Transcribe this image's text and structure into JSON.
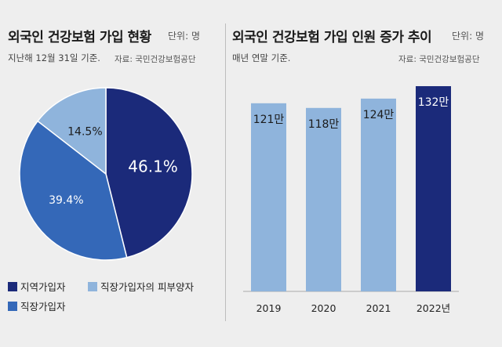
{
  "left": {
    "title": "외국인 건강보험 가입 현황",
    "unit": "단위: 명",
    "subtitle": "지난해 12월 31일 기준.",
    "source": "자료: 국민건강보험공단"
  },
  "right": {
    "title": "외국인 건강보험 가입 인원 증가 추이",
    "unit": "단위: 명",
    "subtitle": "매년 연말 기준.",
    "source": "자료: 국민건강보험공단"
  },
  "chart_data": [
    {
      "type": "pie",
      "title": "외국인 건강보험 가입 현황",
      "slices": [
        {
          "name": "지역가입자",
          "value": 46.1,
          "label": "46.1%",
          "color": "#1b2a7a",
          "label_color": "#ffffff"
        },
        {
          "name": "직장가입자",
          "value": 39.4,
          "label": "39.4%",
          "color": "#3468b8",
          "label_color": "#ffffff"
        },
        {
          "name": "직장가입자의 피부양자",
          "value": 14.5,
          "label": "14.5%",
          "color": "#8fb4dc",
          "label_color": "#1b1b1b"
        }
      ],
      "legend": [
        {
          "label": "지역가입자",
          "color": "#1b2a7a"
        },
        {
          "label": "직장가입자의 피부양자",
          "color": "#8fb4dc"
        },
        {
          "label": "직장가입자",
          "color": "#3468b8"
        }
      ],
      "legend_placement": "bottom"
    },
    {
      "type": "bar",
      "title": "외국인 건강보험 가입 인원 증가 추이",
      "categories": [
        "2019",
        "2020",
        "2021",
        "2022년"
      ],
      "values": [
        121,
        118,
        124,
        132
      ],
      "value_labels": [
        "121만",
        "118만",
        "124만",
        "132만"
      ],
      "colors": [
        "#8fb4dc",
        "#8fb4dc",
        "#8fb4dc",
        "#1b2a7a"
      ],
      "ylim": [
        0,
        132
      ]
    }
  ]
}
